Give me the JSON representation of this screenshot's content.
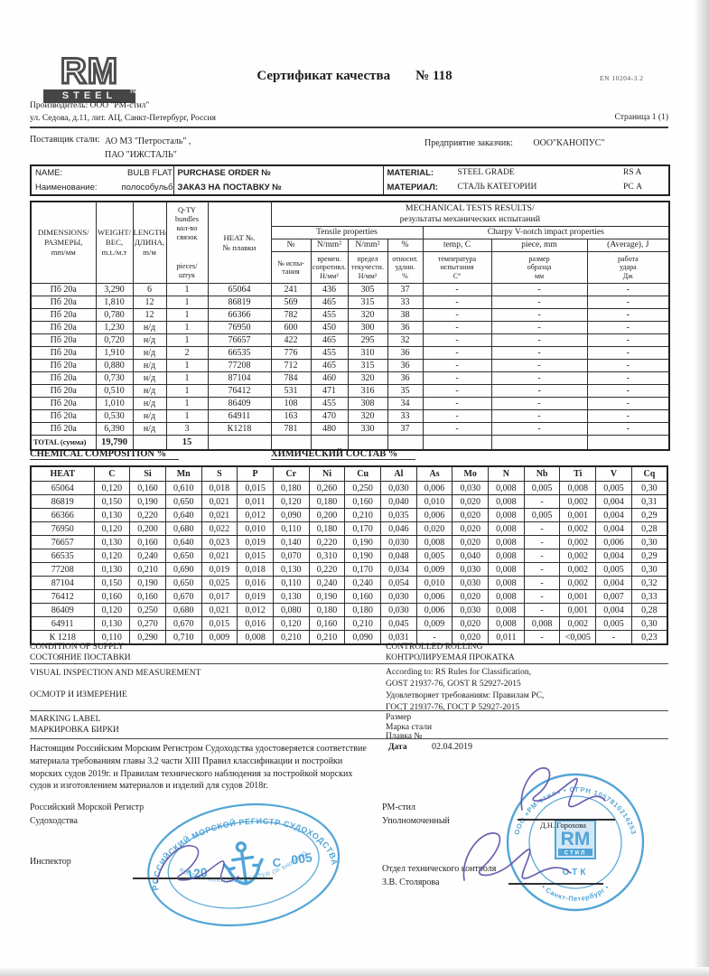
{
  "page": {
    "title": "Сертификат качества",
    "cert_no": "№ 118",
    "standard": "EN 10204-3.2",
    "page_label": "Страница 1 (1)",
    "producer_line1": "Производитель: ООО \"РМ-стил\"",
    "producer_line2": "ул. Седова, д.11,  лит. АЦ, Санкт-Петербург, Россия",
    "supplier_label": "Поставщик стали:",
    "supplier_lines": "АО МЗ \"Петросталь\" ,\nПАО \"ИЖСТАЛЬ\"",
    "customer_label": "Предприятие заказчик:",
    "customer_value": "ООО\"КАНОПУС\""
  },
  "logo": {
    "rm": "RM",
    "steel": "STEEL",
    "tm": "TM"
  },
  "name_table": {
    "name_en": "NAME:",
    "name_value_en": "BULB FLAT",
    "name_ru": "Наименование:",
    "name_value_ru": "полособульб",
    "order_en": "PURCHASE ORDER №",
    "order_ru": "ЗАКАЗ НА ПОСТАВКУ  №",
    "material_en": "MATERIAL:",
    "material_ru": "МАТЕРИАЛ:",
    "grade_en": "STEEL GRADE",
    "grade_ru": "СТАЛЬ КАТЕГОРИИ",
    "grade_value_en": "RS A",
    "grade_value_ru": "РС А"
  },
  "mech": {
    "h": {
      "col1": "DIMENSIONS/\nРАЗМЕРЫ,\nmm/мм",
      "col2": "WEIGHT/\nВЕС,\nm.t./м.т",
      "col3": "LENGTH/\nДЛИНА,\nm/м",
      "col4_top": "Q-TY bundles\nкол-во\nсвязок",
      "col4_bottom": "pieces/\nштук",
      "col5": "HEAT  №.\n№ плавки",
      "title": "MECHANICAL TESTS RESULTS/\nрезультаты механических испытаний",
      "tensile": "Tensile properties",
      "charpy": "Charpy V-notch impact properties",
      "sub": [
        "№",
        "N/mm²",
        "N/mm²",
        "%",
        "temp, C",
        "piece, mm",
        "(Average), J"
      ],
      "sub_ru": [
        "№ испы-\nтания",
        "времен.\nсопротивл.\nН/мм²",
        "предел\nтекучести.\nН/мм²",
        "относит.\nудлин.\n%",
        "температура\nиспытания\nС°",
        "размер\nобразца\nмм",
        "работа\nудара\nДж"
      ]
    },
    "rows": [
      [
        "Пб 20а",
        "3,290",
        "6",
        "1",
        "65064",
        "241",
        "436",
        "305",
        "37",
        "-",
        "-",
        "-"
      ],
      [
        "Пб 20а",
        "1,810",
        "12",
        "1",
        "86819",
        "569",
        "465",
        "315",
        "33",
        "-",
        "-",
        "-"
      ],
      [
        "Пб 20а",
        "0,780",
        "12",
        "1",
        "66366",
        "782",
        "455",
        "320",
        "38",
        "-",
        "-",
        "-"
      ],
      [
        "Пб 20а",
        "1,230",
        "н/д",
        "1",
        "76950",
        "600",
        "450",
        "300",
        "36",
        "-",
        "-",
        "-"
      ],
      [
        "Пб 20а",
        "0,720",
        "н/д",
        "1",
        "76657",
        "422",
        "465",
        "295",
        "32",
        "-",
        "-",
        "-"
      ],
      [
        "Пб 20а",
        "1,910",
        "н/д",
        "2",
        "66535",
        "776",
        "455",
        "310",
        "36",
        "-",
        "-",
        "-"
      ],
      [
        "Пб 20а",
        "0,880",
        "н/д",
        "1",
        "77208",
        "712",
        "465",
        "315",
        "36",
        "-",
        "-",
        "-"
      ],
      [
        "Пб 20а",
        "0,730",
        "н/д",
        "1",
        "87104",
        "784",
        "460",
        "320",
        "36",
        "-",
        "-",
        "-"
      ],
      [
        "Пб 20а",
        "0,510",
        "н/д",
        "1",
        "76412",
        "531",
        "471",
        "316",
        "35",
        "-",
        "-",
        "-"
      ],
      [
        "Пб 20а",
        "1,010",
        "н/д",
        "1",
        "86409",
        "108",
        "455",
        "308",
        "34",
        "-",
        "-",
        "-"
      ],
      [
        "Пб 20а",
        "0,530",
        "н/д",
        "1",
        "64911",
        "163",
        "470",
        "320",
        "33",
        "-",
        "-",
        "-"
      ],
      [
        "Пб 20а",
        "6,390",
        "н/д",
        "3",
        "К1218",
        "781",
        "480",
        "330",
        "37",
        "-",
        "-",
        "-"
      ]
    ],
    "total_label": "TOTAL (сумма)",
    "total_weight": "19,790",
    "total_pieces": "15"
  },
  "chem": {
    "title_en": "CHEMICAL COMPOSITION    %",
    "title_ru": "ХИМИЧЕСКИЙ СОСТАВ    %",
    "headers": [
      "HEAT",
      "C",
      "Si",
      "Mn",
      "S",
      "P",
      "Cr",
      "Ni",
      "Cu",
      "Al",
      "As",
      "Mo",
      "N",
      "Nb",
      "Ti",
      "V",
      "Cq"
    ],
    "rows": [
      [
        "65064",
        "0,120",
        "0,160",
        "0,610",
        "0,018",
        "0,015",
        "0,180",
        "0,260",
        "0,250",
        "0,030",
        "0,006",
        "0,030",
        "0,008",
        "0,005",
        "0,008",
        "0,005",
        "0,30"
      ],
      [
        "86819",
        "0,150",
        "0,190",
        "0,650",
        "0,021",
        "0,011",
        "0,120",
        "0,180",
        "0,160",
        "0,040",
        "0,010",
        "0,020",
        "0,008",
        "-",
        "0,002",
        "0,004",
        "0,31"
      ],
      [
        "66366",
        "0,130",
        "0,220",
        "0,640",
        "0,021",
        "0,012",
        "0,090",
        "0,200",
        "0,210",
        "0,035",
        "0,006",
        "0,020",
        "0,008",
        "0,005",
        "0,001",
        "0,004",
        "0,29"
      ],
      [
        "76950",
        "0,120",
        "0,200",
        "0,680",
        "0,022",
        "0,010",
        "0,110",
        "0,180",
        "0,170",
        "0,046",
        "0,020",
        "0,020",
        "0,008",
        "-",
        "0,002",
        "0,004",
        "0,28"
      ],
      [
        "76657",
        "0,130",
        "0,160",
        "0,640",
        "0,023",
        "0,019",
        "0,140",
        "0,220",
        "0,190",
        "0,030",
        "0,008",
        "0,020",
        "0,008",
        "-",
        "0,002",
        "0,006",
        "0,30"
      ],
      [
        "66535",
        "0,120",
        "0,240",
        "0,650",
        "0,021",
        "0,015",
        "0,070",
        "0,310",
        "0,190",
        "0,048",
        "0,005",
        "0,040",
        "0,008",
        "-",
        "0,002",
        "0,004",
        "0,29"
      ],
      [
        "77208",
        "0,130",
        "0,210",
        "0,690",
        "0,019",
        "0,018",
        "0,130",
        "0,220",
        "0,170",
        "0,034",
        "0,009",
        "0,030",
        "0,008",
        "-",
        "0,002",
        "0,005",
        "0,30"
      ],
      [
        "87104",
        "0,150",
        "0,190",
        "0,650",
        "0,025",
        "0,016",
        "0,110",
        "0,240",
        "0,240",
        "0,054",
        "0,010",
        "0,030",
        "0,008",
        "-",
        "0,002",
        "0,004",
        "0,32"
      ],
      [
        "76412",
        "0,160",
        "0,160",
        "0,670",
        "0,017",
        "0,019",
        "0,130",
        "0,190",
        "0,160",
        "0,030",
        "0,006",
        "0,020",
        "0,008",
        "-",
        "0,001",
        "0,007",
        "0,33"
      ],
      [
        "86409",
        "0,120",
        "0,250",
        "0,680",
        "0,021",
        "0,012",
        "0,080",
        "0,180",
        "0,180",
        "0,030",
        "0,006",
        "0,030",
        "0,008",
        "-",
        "0,001",
        "0,004",
        "0,28"
      ],
      [
        "64911",
        "0,130",
        "0,270",
        "0,670",
        "0,015",
        "0,016",
        "0,120",
        "0,160",
        "0,210",
        "0,045",
        "0,009",
        "0,020",
        "0,008",
        "0,008",
        "0,002",
        "0,005",
        "0,30"
      ],
      [
        "К 1218",
        "0,110",
        "0,290",
        "0,710",
        "0,009",
        "0,008",
        "0,210",
        "0,210",
        "0,090",
        "0,031",
        "-",
        "0,020",
        "0,011",
        "-",
        "<0,005",
        "-",
        "0,23"
      ]
    ]
  },
  "supply": {
    "condition_en": "CONDITION OF SUPPLY",
    "condition_ru": "СОСТОЯНИЕ ПОСТАВКИ",
    "rolling_en": "CONTROLLED ROLLING",
    "rolling_ru": "КОНТРОЛИРУЕМАЯ ПРОКАТКА",
    "visual_en": "VISUAL INSPECTION AND MEASUREMENT",
    "visual_ru": "ОСМОТР И ИЗМЕРЕНИЕ",
    "according": "According to:  RS   Rules for Classification,\nGOST 21937-76, GOST R 52927-2015\nУдовлетворяет требованиям:  Правилам РС,\n ГОСТ 21937-76, ГОСТ Р 52927-2015",
    "marking_en": "MARKING LABEL",
    "marking_ru": "МАРКИРОВКА БИРКИ",
    "size_lines": "Размер\nМарка стали\nПлавка №",
    "date_label": "Дата",
    "date_value": "02.04.2019"
  },
  "statement": "Настоящим Российским Морским Регистром Судоходства удостоверяется соответствие\nматериала требованиям главы 3.2 части XIII  Правил классификации и постройки\nморских судов 2019г. и Правилам технического  наблюдения за постройкой морских\nсудов и изготовлением материалов и изделий для судов 2018г.",
  "signatures": {
    "rmr_org": "Российский Морской Регистр\nСудоходства",
    "inspector_label": "Инспектор",
    "rm_right": "РМ-стил\nУполномоченный",
    "authorized_name": "Д.Н. Горохова",
    "otk_block": "Отдел технического контроля\nЗ.В. Столярова"
  },
  "stamps": {
    "oval": {
      "top_text": "РОССИЙСКИЙ МОРСКОЙ РЕГИСТР СУДОХОДСТВА",
      "bottom_text": "RUSSIAN MARITIME REGISTER OF SHIPPING",
      "left_num": "120",
      "letter": "С",
      "right_num": "005"
    },
    "round": {
      "ring_text": "ООО «РМ-стил»  •  ОГРН 1057810214253",
      "bottom_text": "• Санкт-Петербург •",
      "center_rm": "RM",
      "center_sub": "СТИЛ",
      "otk": "ОТК"
    }
  },
  "colors": {
    "stamp_blue": "#3f9bd2",
    "signature_purple": "#5a52a8"
  }
}
